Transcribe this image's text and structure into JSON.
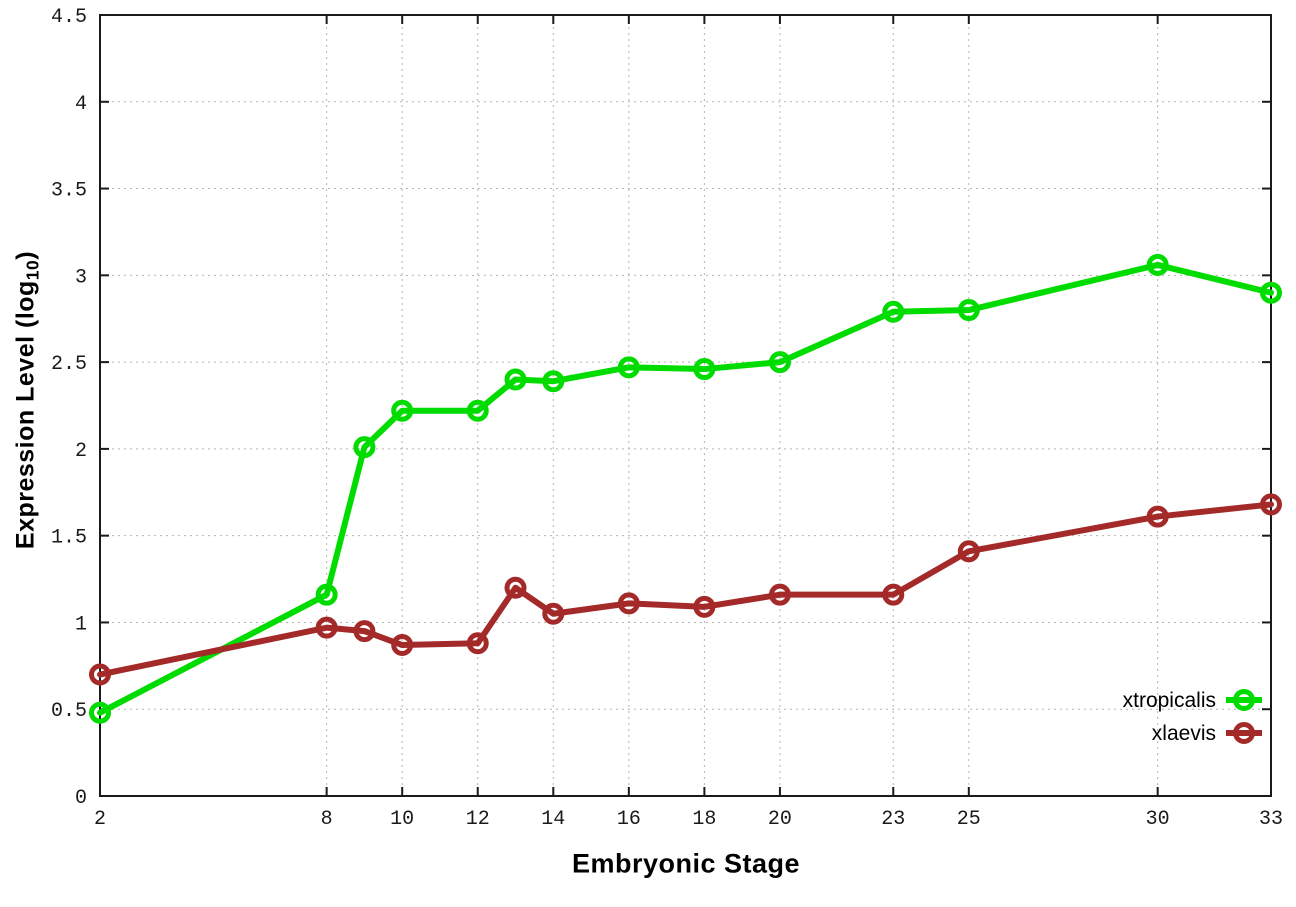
{
  "figure": {
    "background": "#ffffff",
    "xlabel": "Embryonic Stage",
    "ylabel_prefix": "Expression Level (log",
    "ylabel_sub": "10",
    "ylabel_suffix": ")"
  },
  "chart_data": {
    "type": "line",
    "title": "",
    "xlabel": "Embryonic Stage",
    "ylabel": "Expression Level (log10)",
    "x": [
      2,
      8,
      9,
      10,
      12,
      13,
      14,
      16,
      18,
      20,
      23,
      25,
      30,
      33
    ],
    "xticks": [
      2,
      8,
      10,
      12,
      14,
      16,
      18,
      20,
      23,
      25,
      30,
      33
    ],
    "yticks": [
      0,
      0.5,
      1,
      1.5,
      2,
      2.5,
      3,
      3.5,
      4,
      4.5
    ],
    "xlim": [
      2,
      33
    ],
    "ylim": [
      0,
      4.5
    ],
    "grid": true,
    "grid_style": "dotted",
    "legend_position": "inside-bottom-right",
    "marker": "open-circle",
    "series": [
      {
        "name": "xtropicalis",
        "color": "#00dc00",
        "values": [
          0.48,
          1.16,
          2.01,
          2.22,
          2.22,
          2.4,
          2.39,
          2.47,
          2.46,
          2.5,
          2.79,
          2.8,
          3.06,
          2.9
        ]
      },
      {
        "name": "xlaevis",
        "color": "#a42a2a",
        "values": [
          0.7,
          0.97,
          0.95,
          0.87,
          0.88,
          1.2,
          1.05,
          1.11,
          1.09,
          1.16,
          1.16,
          1.41,
          1.61,
          1.68
        ]
      }
    ],
    "colors": {
      "grid": "#b3b3b3",
      "border": "#1a1a1a",
      "tick_text": "#1a1a1a",
      "legend_text": "#000000"
    }
  }
}
